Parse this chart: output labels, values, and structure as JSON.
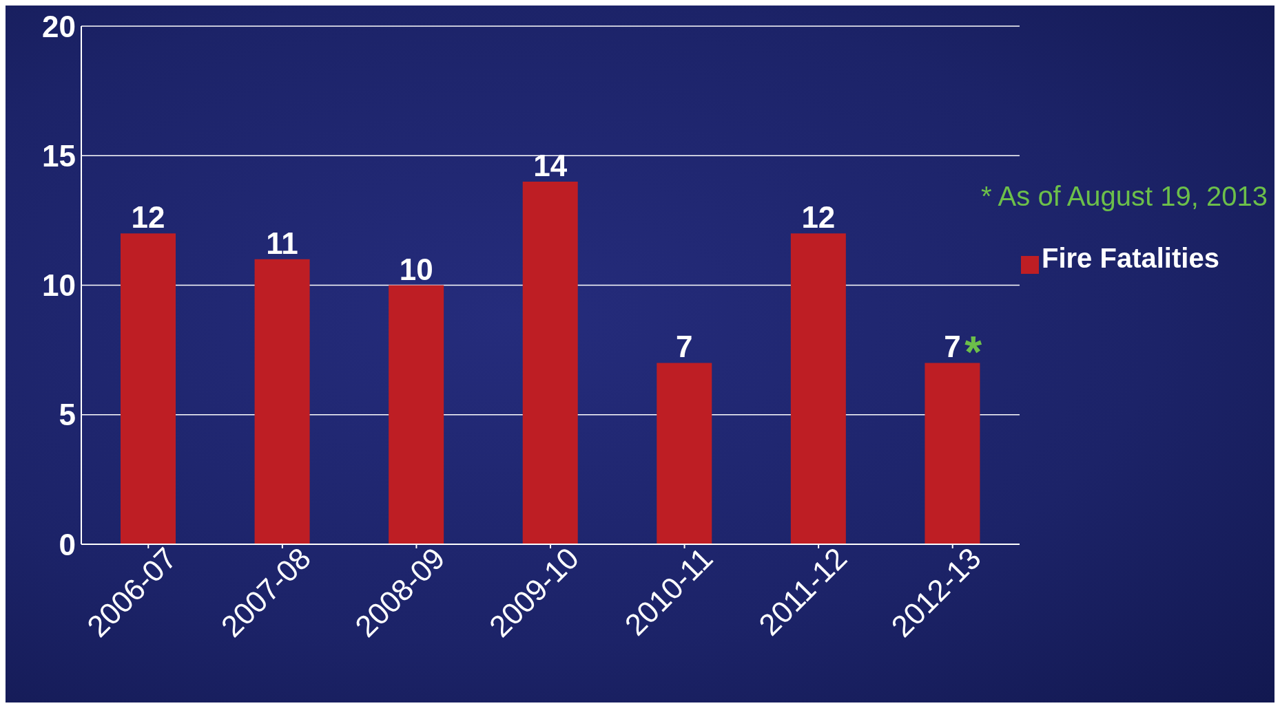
{
  "chart_data": {
    "type": "bar",
    "categories": [
      "2006-07",
      "2007-08",
      "2008-09",
      "2009-10",
      "2010-11",
      "2011-12",
      "2012-13"
    ],
    "series": [
      {
        "name": "Fire Fatalities",
        "color": "#be1e24",
        "values": [
          12,
          11,
          10,
          14,
          7,
          12,
          7
        ]
      }
    ],
    "ylim": [
      0,
      20
    ],
    "yticks": [
      0,
      5,
      10,
      15,
      20
    ],
    "grid": "y",
    "legend": "right",
    "data_labels": true,
    "annotations": [
      "* As of August 19, 2013",
      {
        "text": "*",
        "x": "2012-13",
        "y": 7
      }
    ]
  }
}
